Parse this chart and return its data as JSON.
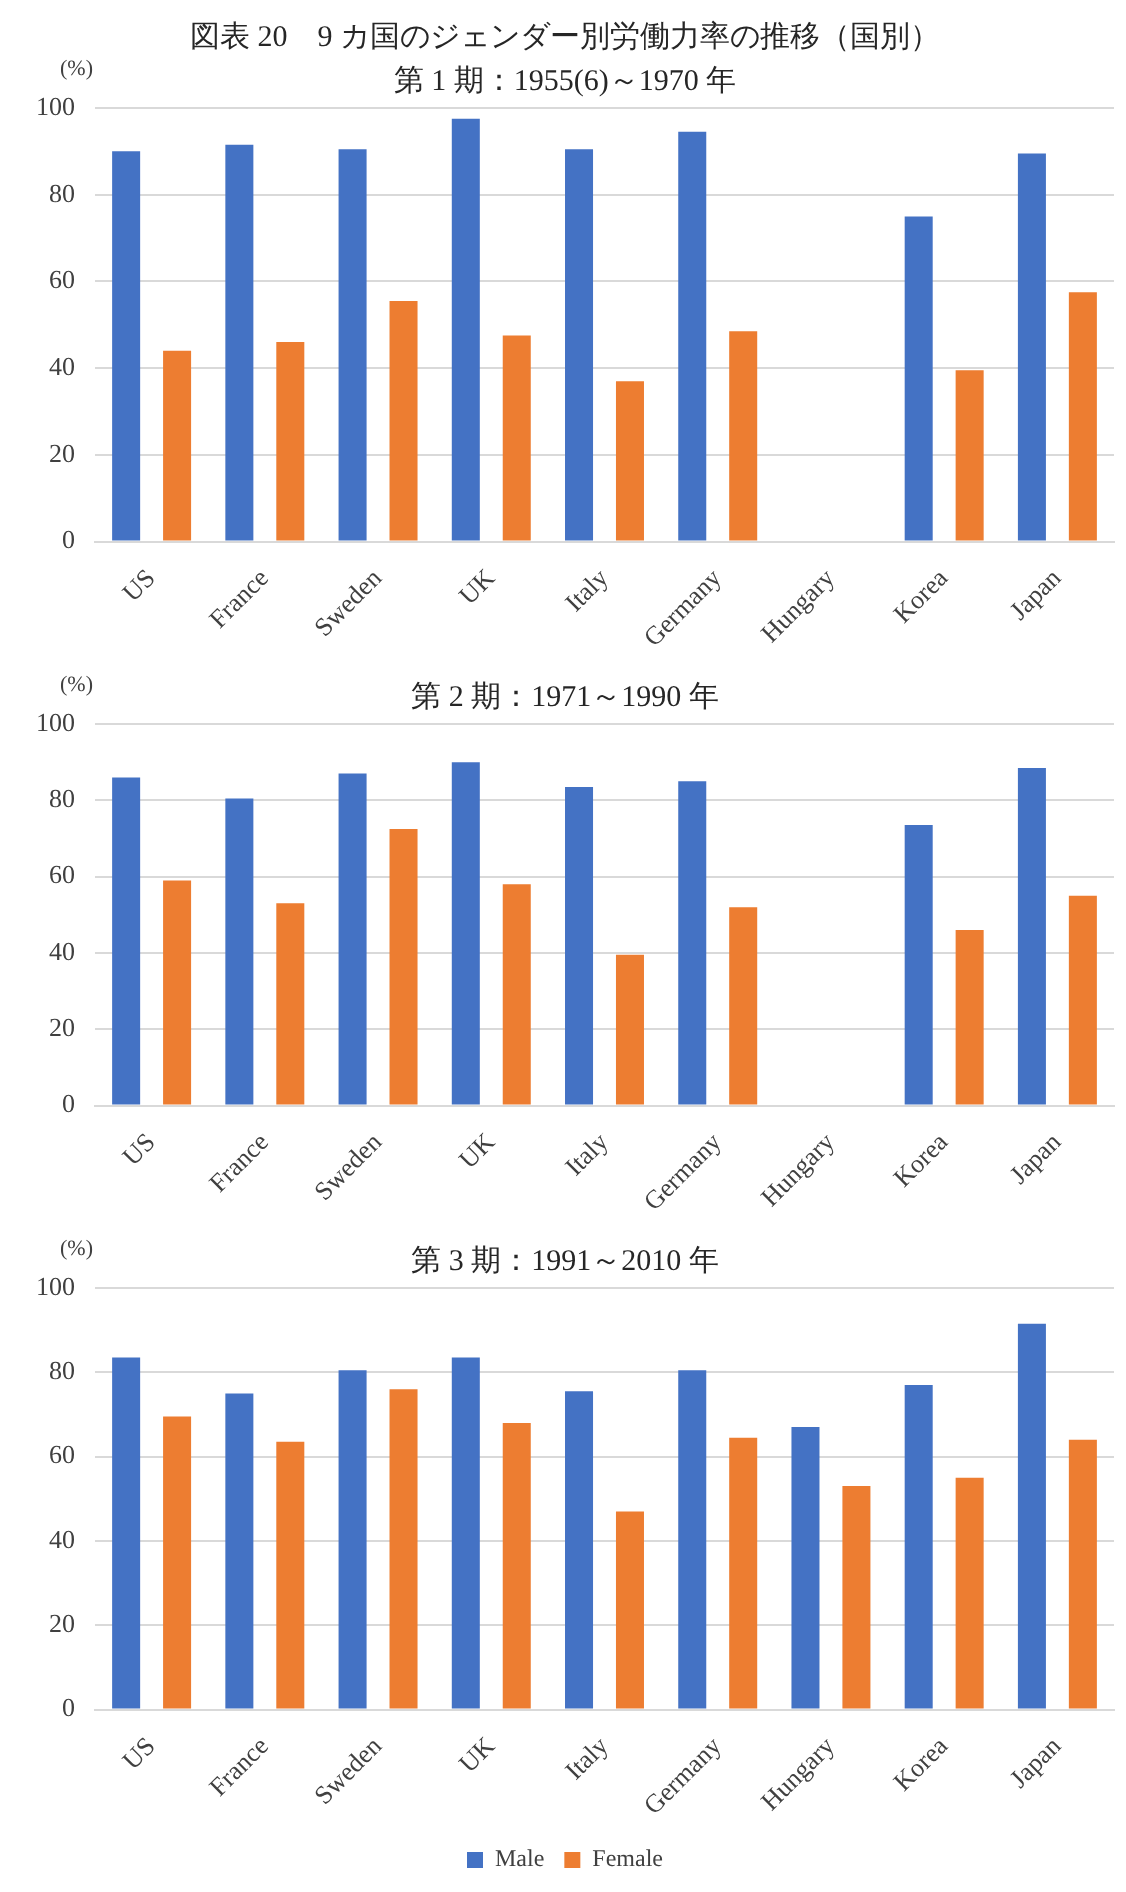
{
  "chart_data": [
    {
      "type": "bar",
      "title": "図表 20　9 カ国のジェンダー別労働力率の推移（国別）",
      "subtitle": "第 1 期：1955(6)～1970 年",
      "ylabel": "(%)",
      "categories": [
        "US",
        "France",
        "Sweden",
        "UK",
        "Italy",
        "Germany",
        "Hungary",
        "Korea",
        "Japan"
      ],
      "series": [
        {
          "color": "#4472c4",
          "values": [
            90,
            91.5,
            90.5,
            97.5,
            90.5,
            94.5,
            null,
            75,
            89.5
          ]
        },
        {
          "color": "#ed7d31",
          "values": [
            44,
            46,
            55.5,
            47.5,
            37,
            48.5,
            null,
            39.5,
            57.5
          ]
        }
      ],
      "ylim": [
        0,
        100
      ],
      "yticks": [
        0,
        20,
        40,
        60,
        80,
        100
      ],
      "grid": "y",
      "legend": false
    },
    {
      "type": "bar",
      "title": "第 2 期：1971～1990 年",
      "ylabel": "(%)",
      "categories": [
        "US",
        "France",
        "Sweden",
        "UK",
        "Italy",
        "Germany",
        "Hungary",
        "Korea",
        "Japan"
      ],
      "series": [
        {
          "color": "#4472c4",
          "values": [
            86,
            80.5,
            87,
            90,
            83.5,
            85,
            null,
            73.5,
            88.5
          ]
        },
        {
          "color": "#ed7d31",
          "values": [
            59,
            53,
            72.5,
            58,
            39.5,
            52,
            null,
            46,
            55
          ]
        }
      ],
      "ylim": [
        0,
        100
      ],
      "yticks": [
        0,
        20,
        40,
        60,
        80,
        100
      ],
      "grid": "y",
      "legend": false
    },
    {
      "type": "bar",
      "title": "第 3 期：1991～2010 年",
      "ylabel": "(%)",
      "categories": [
        "US",
        "France",
        "Sweden",
        "UK",
        "Italy",
        "Germany",
        "Hungary",
        "Korea",
        "Japan"
      ],
      "series": [
        {
          "name": "Male",
          "color": "#4472c4",
          "values": [
            83.5,
            75,
            80.5,
            83.5,
            75.5,
            80.5,
            67,
            77,
            91.5
          ]
        },
        {
          "name": "Female",
          "color": "#ed7d31",
          "values": [
            69.5,
            63.5,
            76,
            68,
            47,
            64.5,
            53,
            55,
            64
          ]
        }
      ],
      "ylim": [
        0,
        100
      ],
      "yticks": [
        0,
        20,
        40,
        60,
        80,
        100
      ],
      "grid": "y",
      "legend": "bottom"
    }
  ]
}
